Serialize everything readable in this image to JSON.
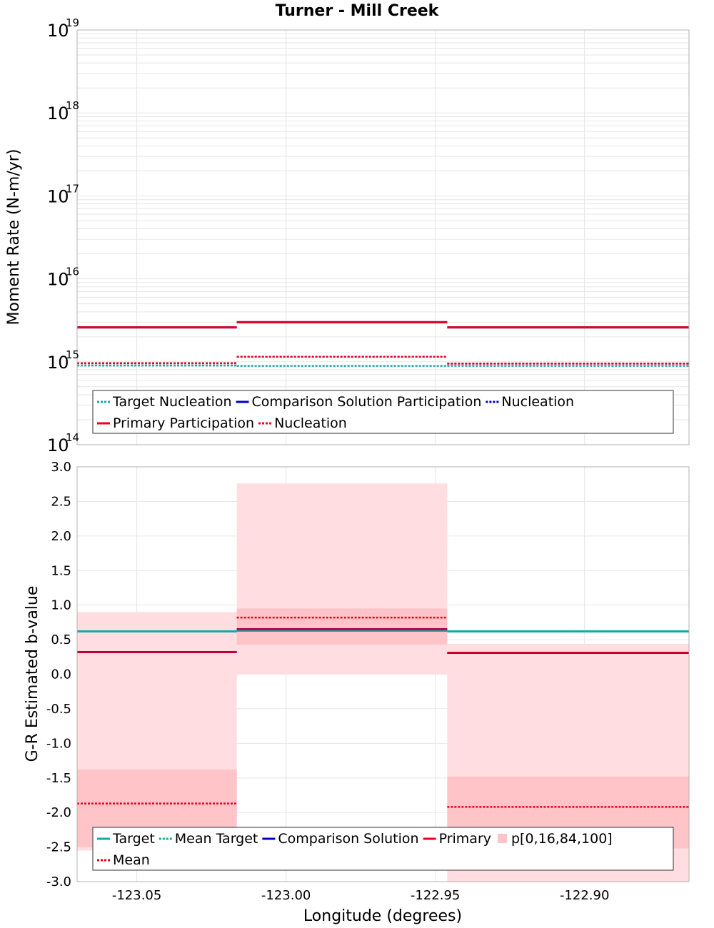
{
  "title": "Turner - Mill Creek",
  "colors": {
    "target": "#17a8a8",
    "comparison": "#0000cc",
    "primary": "#e8001c",
    "band_outer": "#ffdde0",
    "band_inner": "#ffc4c8",
    "grid": "#e6e6e6"
  },
  "chart_data": [
    {
      "type": "line",
      "subtype": "step",
      "ylabel": "Moment Rate (N-m/yr)",
      "yscale": "log",
      "ylim": [
        100000000000000.0,
        1e+19
      ],
      "xlim": [
        -123.07,
        -122.865
      ],
      "y_ticks": [
        {
          "base": "10",
          "exp": "14"
        },
        {
          "base": "10",
          "exp": "15"
        },
        {
          "base": "10",
          "exp": "16"
        },
        {
          "base": "10",
          "exp": "17"
        },
        {
          "base": "10",
          "exp": "18"
        },
        {
          "base": "10",
          "exp": "19"
        }
      ],
      "bins": [
        {
          "x0": -123.07,
          "x1": -123.0165
        },
        {
          "x0": -123.0165,
          "x1": -122.946
        },
        {
          "x0": -122.946,
          "x1": -122.865
        }
      ],
      "series": [
        {
          "name": "Target Nucleation",
          "style": "dotted",
          "color": "#17a8a8",
          "values": [
            900000000000000.0,
            890000000000000.0,
            890000000000000.0
          ]
        },
        {
          "name": "Comparison Solution Participation",
          "style": "solid",
          "color": "#0000cc",
          "values": [
            2600000000000000.0,
            3000000000000000.0,
            2600000000000000.0
          ]
        },
        {
          "name": "Nucleation",
          "style": "dotted",
          "color": "#0000cc",
          "values": [
            960000000000000.0,
            1150000000000000.0,
            950000000000000.0
          ]
        },
        {
          "name": "Primary Participation",
          "style": "solid",
          "color": "#e8001c",
          "values": [
            2600000000000000.0,
            3000000000000000.0,
            2600000000000000.0
          ]
        },
        {
          "name": "Nucleation",
          "style": "dotted",
          "color": "#e8001c",
          "values": [
            960000000000000.0,
            1150000000000000.0,
            950000000000000.0
          ]
        }
      ],
      "legend": {
        "placement": "bottom",
        "rows": [
          [
            "Target Nucleation",
            "Comparison Solution Participation",
            "Nucleation"
          ],
          [
            "Primary Participation",
            "Nucleation"
          ]
        ]
      }
    },
    {
      "type": "line",
      "subtype": "step",
      "xlabel": "Longitude (degrees)",
      "ylabel": "G-R Estimated b-value",
      "ylim": [
        -3.0,
        3.0
      ],
      "xlim": [
        -123.07,
        -122.865
      ],
      "y_ticks": [
        "3.0",
        "2.5",
        "2.0",
        "1.5",
        "1.0",
        "0.5",
        "0.0",
        "-0.5",
        "-1.0",
        "-1.5",
        "-2.0",
        "-2.5",
        "-3.0"
      ],
      "x_ticks": [
        "-123.05",
        "-123.00",
        "-122.95",
        "-122.90"
      ],
      "bins": [
        {
          "x0": -123.07,
          "x1": -123.0165
        },
        {
          "x0": -123.0165,
          "x1": -122.946
        },
        {
          "x0": -122.946,
          "x1": -122.865
        }
      ],
      "series": [
        {
          "name": "Target",
          "style": "solid",
          "color": "#17a8a8",
          "values": [
            0.62,
            0.63,
            0.62
          ]
        },
        {
          "name": "Mean Target",
          "style": "dotted",
          "color": "#17a8a8",
          "values": [
            0.62,
            0.63,
            0.62
          ]
        },
        {
          "name": "Comparison Solution",
          "style": "solid",
          "color": "#0000cc",
          "values": [
            0.32,
            0.65,
            0.31
          ]
        },
        {
          "name": "Primary",
          "style": "solid",
          "color": "#e8001c",
          "values": [
            0.32,
            0.65,
            0.31
          ]
        },
        {
          "name": "Mean",
          "style": "dotted",
          "color": "#e8001c",
          "values": [
            -1.87,
            0.82,
            -1.92
          ]
        }
      ],
      "percentiles": {
        "name": "p[0,16,84,100]",
        "p0": [
          -2.55,
          0.0,
          -3.0
        ],
        "p16": [
          -2.5,
          0.43,
          -2.52
        ],
        "p84": [
          -1.38,
          0.95,
          -1.48
        ],
        "p100": [
          0.9,
          2.76,
          0.44
        ]
      },
      "legend": {
        "placement": "bottom",
        "rows": [
          [
            "Target",
            "Mean Target",
            "Comparison Solution",
            "Primary",
            "p[0,16,84,100]"
          ],
          [
            "Mean"
          ]
        ]
      }
    }
  ]
}
